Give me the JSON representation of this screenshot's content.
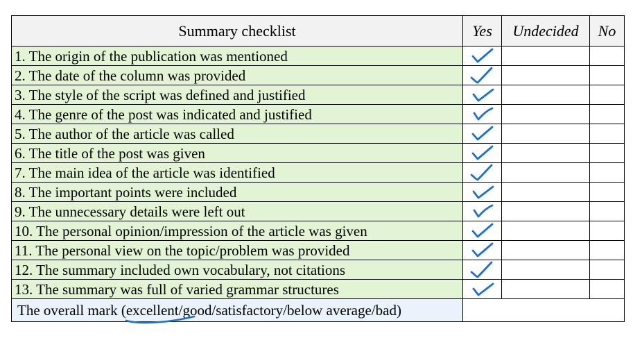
{
  "header": {
    "criterion": "Summary checklist",
    "yes": "Yes",
    "undecided": "Undecided",
    "no": "No"
  },
  "rows": [
    {
      "text": "1. The origin of the publication was mentioned",
      "answer": "yes"
    },
    {
      "text": "2. The date of the column was provided",
      "answer": "yes"
    },
    {
      "text": "3. The style of the script was defined and justified",
      "answer": "yes"
    },
    {
      "text": "4. The genre of the post was indicated and justified",
      "answer": "yes"
    },
    {
      "text": "5. The author of the article was called",
      "answer": "yes"
    },
    {
      "text": "6. The title of the post was given",
      "answer": "yes"
    },
    {
      "text": "7. The main idea of the article was identified",
      "answer": "yes"
    },
    {
      "text": "8. The important points were included",
      "answer": "yes"
    },
    {
      "text": "9. The unnecessary details were left out",
      "answer": "yes"
    },
    {
      "text": "10. The personal opinion/impression of the article was given",
      "answer": "yes"
    },
    {
      "text": "11. The personal view on the topic/problem was provided",
      "answer": "yes"
    },
    {
      "text": "12. The summary included own vocabulary, not citations",
      "answer": "yes"
    },
    {
      "text": "13. The summary was full of varied grammar structures",
      "answer": "yes"
    }
  ],
  "overall": {
    "prefix": "The overall mark (",
    "selected": "excellent",
    "suffix": "/good/satisfactory/below average/bad)"
  },
  "colors": {
    "check_ink": "#1f6fd1",
    "criteria_fill": "#e3f4d5",
    "overall_fill": "#eaf2fb"
  }
}
